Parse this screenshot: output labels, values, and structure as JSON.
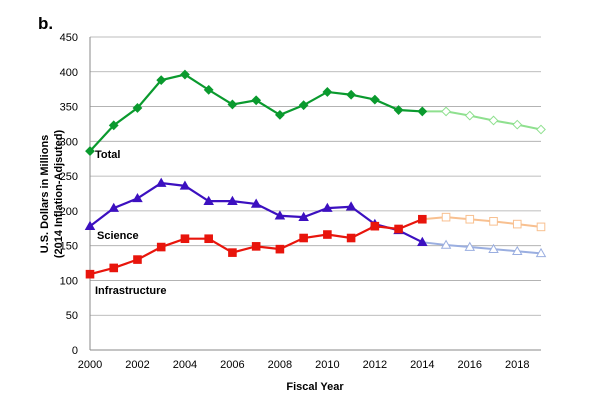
{
  "panel_label": "b.",
  "chart_data": {
    "type": "line",
    "title": "",
    "xlabel": "Fiscal Year",
    "ylabel_lines": [
      "U.S. Dollars in Millions",
      "(2014 Inflation-Adjsuted)"
    ],
    "xlim": [
      2000,
      2019
    ],
    "ylim": [
      0,
      450
    ],
    "x_ticks": [
      2000,
      2002,
      2004,
      2006,
      2008,
      2010,
      2012,
      2014,
      2016,
      2018
    ],
    "y_ticks": [
      0,
      50,
      100,
      150,
      200,
      250,
      300,
      350,
      400,
      450
    ],
    "grid": "horizontal",
    "series": [
      {
        "name": "Total",
        "color": "#0a9a2e",
        "projection_color": "#8fe08f",
        "marker": "diamond",
        "x": [
          2000,
          2001,
          2002,
          2003,
          2004,
          2005,
          2006,
          2007,
          2008,
          2009,
          2010,
          2011,
          2012,
          2013,
          2014
        ],
        "values": [
          286,
          323,
          348,
          388,
          396,
          374,
          353,
          359,
          338,
          352,
          371,
          367,
          360,
          345,
          343
        ],
        "projection_x": [
          2014,
          2015,
          2016,
          2017,
          2018,
          2019
        ],
        "projection_values": [
          343,
          343,
          337,
          330,
          324,
          317
        ]
      },
      {
        "name": "Science",
        "color": "#3c10c0",
        "projection_color": "#9aaee0",
        "marker": "triangle",
        "x": [
          2000,
          2001,
          2002,
          2003,
          2004,
          2005,
          2006,
          2007,
          2008,
          2009,
          2010,
          2011,
          2012,
          2013,
          2014
        ],
        "values": [
          178,
          204,
          218,
          240,
          236,
          214,
          214,
          210,
          193,
          191,
          204,
          206,
          181,
          172,
          155
        ],
        "projection_x": [
          2014,
          2015,
          2016,
          2017,
          2018,
          2019
        ],
        "projection_values": [
          155,
          151,
          148,
          145,
          142,
          139
        ]
      },
      {
        "name": "Infrastructure",
        "color": "#e8150c",
        "projection_color": "#f8c090",
        "marker": "square",
        "x": [
          2000,
          2001,
          2002,
          2003,
          2004,
          2005,
          2006,
          2007,
          2008,
          2009,
          2010,
          2011,
          2012,
          2013,
          2014
        ],
        "values": [
          109,
          118,
          130,
          148,
          160,
          160,
          140,
          149,
          145,
          161,
          166,
          161,
          178,
          174,
          188
        ],
        "projection_x": [
          2014,
          2015,
          2016,
          2017,
          2018,
          2019
        ],
        "projection_values": [
          188,
          191,
          188,
          185,
          181,
          177
        ]
      }
    ]
  }
}
